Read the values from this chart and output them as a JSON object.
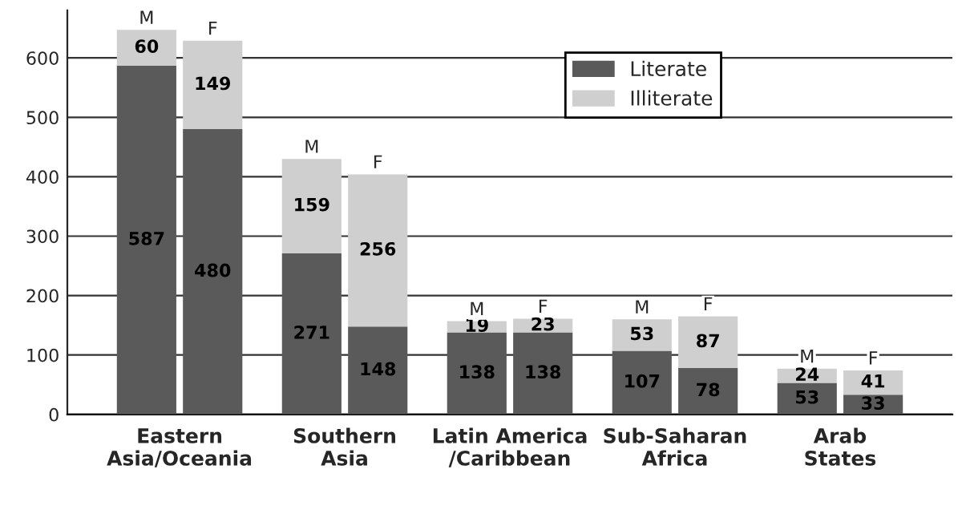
{
  "chart_data": {
    "type": "bar",
    "stacked": true,
    "data_labels": true,
    "categories": [
      "M",
      "F",
      "M",
      "F",
      "M",
      "F",
      "M",
      "F",
      "M",
      "F"
    ],
    "series": [
      {
        "name": "Literate",
        "color": "#5a5a5a",
        "values": [
          587,
          480,
          271,
          148,
          138,
          138,
          107,
          78,
          53,
          33
        ]
      },
      {
        "name": "Illiterate",
        "color": "#cfcfcf",
        "values": [
          60,
          149,
          159,
          256,
          19,
          23,
          53,
          87,
          24,
          41
        ]
      }
    ],
    "annotations": [
      "Eastern\nAsia/Oceania",
      "Southern\nAsia",
      "Latin America\n/Caribbean",
      "Sub-Saharan\nAfrica",
      "Arab\nStates"
    ],
    "ylim": [
      0,
      680
    ],
    "yticks": [
      0,
      100,
      200,
      300,
      400,
      500,
      600
    ],
    "grid": "y",
    "legend": "top right"
  }
}
